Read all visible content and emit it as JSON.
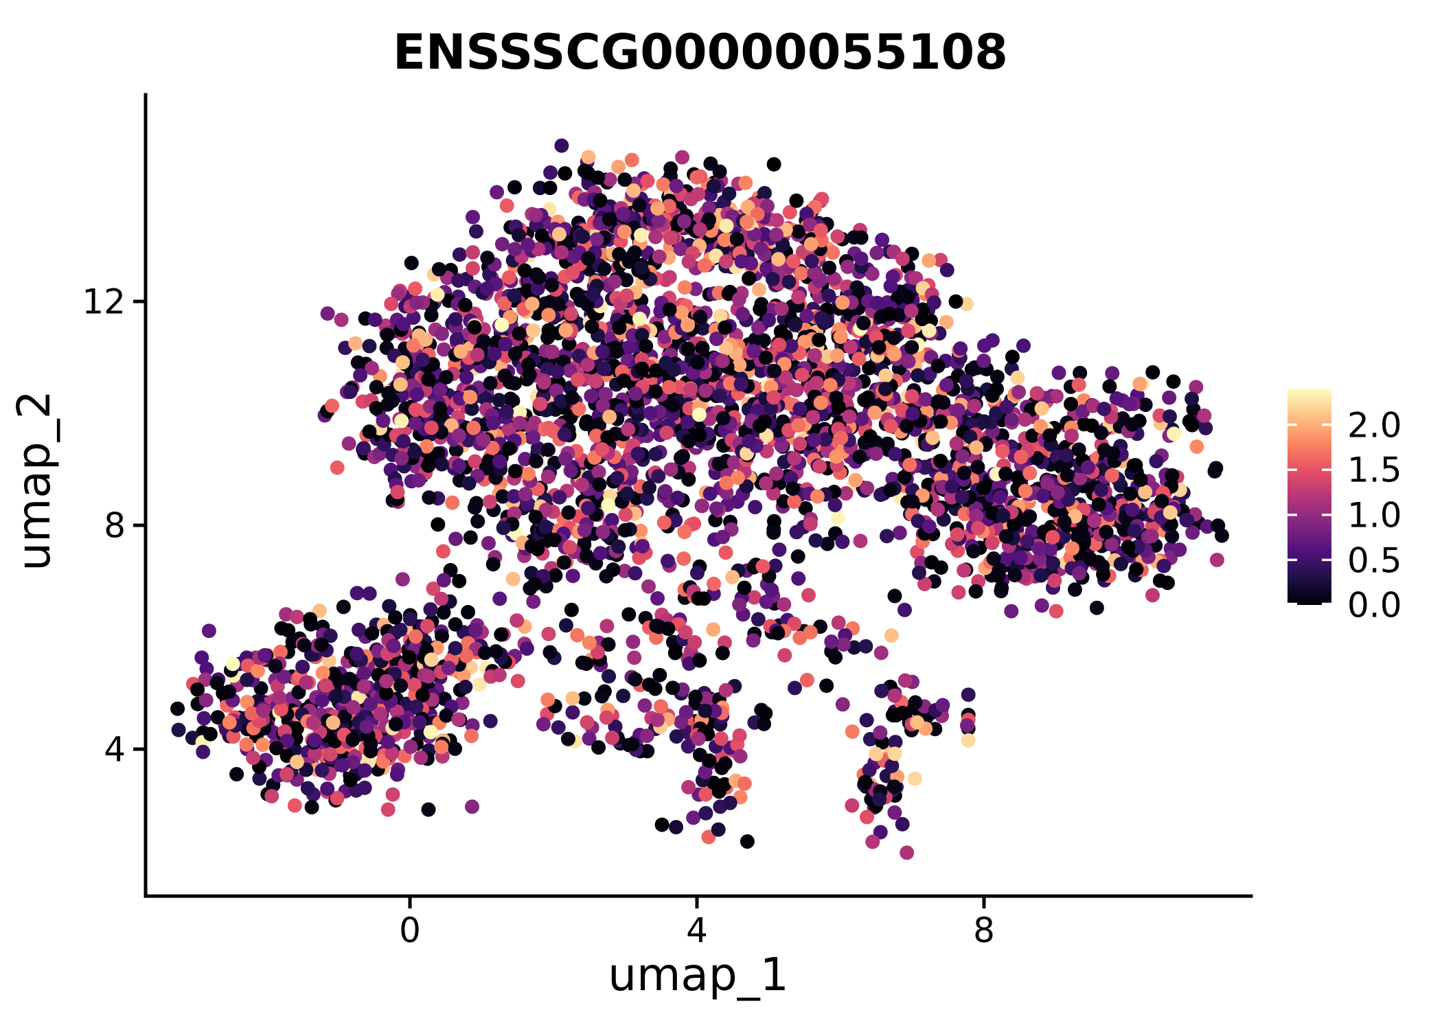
{
  "title": "ENSSSCG00000055108",
  "axes": {
    "x_label": "umap_1",
    "y_label": "umap_2",
    "x_tick_labels": [
      "0",
      "4",
      "8"
    ],
    "x_tick_values": [
      0,
      4,
      8
    ],
    "y_tick_labels": [
      "4",
      "8",
      "12"
    ],
    "y_tick_values": [
      4,
      8,
      12
    ]
  },
  "colorbar": {
    "tick_labels": [
      "2.0",
      "1.5",
      "1.0",
      "0.5",
      "0.0"
    ],
    "tick_values": [
      2.0,
      1.5,
      1.0,
      0.5,
      0.0
    ],
    "domain": [
      0,
      2.4
    ]
  },
  "chart_data": {
    "type": "scatter",
    "title": "ENSSSCG00000055108",
    "xlabel": "umap_1",
    "ylabel": "umap_2",
    "xlim": [
      -3.7,
      11.8
    ],
    "ylim": [
      1.3,
      15.7
    ],
    "x_ticks": [
      0,
      4,
      8
    ],
    "y_ticks": [
      4,
      8,
      12
    ],
    "grid": false,
    "legend_position": "right-colorbar",
    "point_radius_px": 10.5,
    "color_scale": {
      "name": "magma",
      "domain": [
        0,
        2.4
      ],
      "stops": [
        "#000004",
        "#1d1147",
        "#51127c",
        "#822681",
        "#b63679",
        "#e65164",
        "#fb8861",
        "#fec287",
        "#fcfdbf"
      ]
    },
    "value_bands": [
      [
        0,
        0.1
      ],
      [
        0.2,
        0.75
      ],
      [
        0.75,
        1.25
      ],
      [
        1.25,
        1.7
      ],
      [
        1.7,
        2.1
      ],
      [
        2.1,
        2.4
      ]
    ],
    "band_weights_cold": [
      0.36,
      0.3,
      0.17,
      0.11,
      0.045,
      0.015
    ],
    "band_weights_hot": [
      0.1,
      0.18,
      0.22,
      0.25,
      0.17,
      0.08
    ],
    "clusters_format": [
      "x_center",
      "y_center",
      "x_spread",
      "y_spread",
      "n_points",
      "hotness"
    ],
    "clusters": [
      [
        2.6,
        13.2,
        0.75,
        0.6,
        110,
        0.3
      ],
      [
        3.3,
        13.8,
        0.55,
        0.45,
        85,
        0.35
      ],
      [
        4.2,
        13.3,
        0.65,
        0.5,
        95,
        0.45
      ],
      [
        4.6,
        13.35,
        0.3,
        0.25,
        26,
        0.9
      ],
      [
        5.15,
        12.9,
        0.55,
        0.45,
        75,
        0.5
      ],
      [
        5.95,
        12.3,
        0.65,
        0.55,
        85,
        0.35
      ],
      [
        6.7,
        11.7,
        0.6,
        0.55,
        70,
        0.25
      ],
      [
        2.0,
        12.5,
        0.65,
        0.6,
        85,
        0.25
      ],
      [
        1.2,
        11.7,
        0.6,
        0.6,
        80,
        0.2
      ],
      [
        -0.15,
        10.4,
        0.45,
        0.85,
        105,
        0.12
      ],
      [
        0.6,
        10.8,
        0.55,
        0.55,
        75,
        0.18
      ],
      [
        1.1,
        9.8,
        0.65,
        0.6,
        80,
        0.2
      ],
      [
        0.3,
        9.4,
        0.5,
        0.45,
        55,
        0.15
      ],
      [
        2.2,
        10.9,
        0.8,
        0.7,
        105,
        0.25
      ],
      [
        3.2,
        11.1,
        0.75,
        0.7,
        105,
        0.3
      ],
      [
        4.2,
        11.4,
        0.7,
        0.6,
        95,
        0.3
      ],
      [
        3.0,
        9.8,
        0.8,
        0.7,
        95,
        0.25
      ],
      [
        2.0,
        8.7,
        0.7,
        0.7,
        95,
        0.25
      ],
      [
        3.9,
        10.1,
        0.75,
        0.7,
        85,
        0.25
      ],
      [
        4.8,
        10.7,
        0.6,
        0.6,
        85,
        0.3
      ],
      [
        5.6,
        11.0,
        0.6,
        0.6,
        75,
        0.3
      ],
      [
        4.7,
        9.4,
        0.7,
        0.7,
        70,
        0.25
      ],
      [
        5.6,
        9.9,
        0.7,
        0.6,
        65,
        0.25
      ],
      [
        6.5,
        10.5,
        0.6,
        0.6,
        75,
        0.25
      ],
      [
        2.7,
        7.9,
        0.6,
        0.55,
        65,
        0.25
      ],
      [
        1.6,
        7.7,
        0.45,
        0.45,
        40,
        0.2
      ],
      [
        6.3,
        9.1,
        0.55,
        0.6,
        50,
        0.2
      ],
      [
        7.3,
        10.0,
        0.55,
        0.7,
        65,
        0.2
      ],
      [
        8.1,
        9.6,
        0.7,
        0.7,
        100,
        0.2
      ],
      [
        9.0,
        8.9,
        0.7,
        0.7,
        100,
        0.2
      ],
      [
        8.3,
        8.2,
        0.7,
        0.6,
        90,
        0.2
      ],
      [
        9.6,
        8.4,
        0.6,
        0.6,
        80,
        0.2
      ],
      [
        10.1,
        7.9,
        0.5,
        0.5,
        60,
        0.2
      ],
      [
        9.0,
        7.5,
        0.6,
        0.45,
        60,
        0.2
      ],
      [
        7.6,
        8.7,
        0.55,
        0.65,
        70,
        0.2
      ],
      [
        7.9,
        7.5,
        0.5,
        0.45,
        45,
        0.2
      ],
      [
        10.5,
        8.6,
        0.35,
        0.45,
        35,
        0.15
      ],
      [
        10.35,
        10.05,
        0.42,
        0.3,
        40,
        0.12
      ],
      [
        5.2,
        8.1,
        0.7,
        0.8,
        35,
        0.2
      ],
      [
        4.2,
        7.0,
        0.4,
        0.9,
        40,
        0.2
      ],
      [
        3.4,
        6.1,
        0.5,
        0.5,
        30,
        0.25
      ],
      [
        2.6,
        5.0,
        0.45,
        0.45,
        38,
        0.3
      ],
      [
        1.5,
        5.9,
        0.5,
        0.35,
        26,
        0.3
      ],
      [
        0.6,
        5.7,
        0.35,
        0.3,
        16,
        0.25
      ],
      [
        5.0,
        6.3,
        0.45,
        0.55,
        22,
        0.2
      ],
      [
        5.9,
        5.7,
        0.35,
        0.45,
        16,
        0.2
      ],
      [
        4.2,
        3.5,
        0.3,
        0.5,
        40,
        0.25
      ],
      [
        4.2,
        4.65,
        0.4,
        0.3,
        30,
        0.25
      ],
      [
        3.3,
        4.2,
        0.45,
        0.2,
        20,
        0.2
      ],
      [
        6.9,
        4.55,
        0.38,
        0.3,
        40,
        0.35
      ],
      [
        6.5,
        3.3,
        0.28,
        0.5,
        35,
        0.35
      ],
      [
        5.1,
        4.5,
        0.12,
        0.12,
        3,
        0.1
      ],
      [
        -1.5,
        4.8,
        0.8,
        0.7,
        140,
        0.28
      ],
      [
        -0.6,
        5.4,
        0.6,
        0.6,
        100,
        0.3
      ],
      [
        -0.4,
        4.3,
        0.55,
        0.6,
        85,
        0.3
      ],
      [
        -2.2,
        4.6,
        0.45,
        0.45,
        55,
        0.25
      ],
      [
        -1.2,
        3.7,
        0.55,
        0.4,
        55,
        0.3
      ],
      [
        0.3,
        6.0,
        0.45,
        0.45,
        45,
        0.3
      ],
      [
        0.2,
        4.7,
        0.4,
        0.4,
        40,
        0.3
      ]
    ]
  }
}
